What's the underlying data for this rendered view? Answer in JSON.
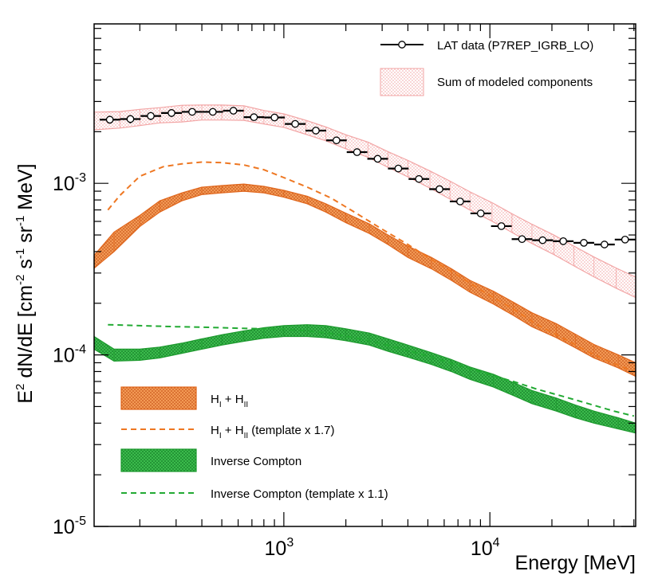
{
  "chart_data": {
    "type": "line",
    "xlabel": "Energy [MeV]",
    "ylabel": {
      "parts": [
        "E",
        "2",
        " dN/dE [cm",
        "-2",
        " s",
        "-1",
        " sr",
        "-1",
        " MeV]"
      ]
    },
    "xscale": "log",
    "yscale": "log",
    "xlim": [
      120,
      51000
    ],
    "ylim": [
      1e-05,
      0.0085
    ],
    "x_ticks": [
      {
        "value": 1000,
        "base": "10",
        "exp": "3"
      },
      {
        "value": 10000,
        "base": "10",
        "exp": "4"
      }
    ],
    "y_ticks": [
      {
        "value": 1e-05,
        "base": "10",
        "exp": "-5"
      },
      {
        "value": 0.0001,
        "base": "10",
        "exp": "-4"
      },
      {
        "value": 0.001,
        "base": "10",
        "exp": "-3"
      }
    ],
    "colors": {
      "data": "#000000",
      "sum_band": "#f4a0a0",
      "hi": "#ee7722",
      "ic": "#22aa33"
    },
    "legend_top": [
      {
        "key": "lat",
        "label": "LAT data (P7REP_IGRB_LO)"
      },
      {
        "key": "sum",
        "label": "Sum of modeled components"
      }
    ],
    "legend_bottom": [
      {
        "key": "hi_band",
        "label_parts": [
          "H",
          "I",
          " + H",
          "II"
        ]
      },
      {
        "key": "hi_dash",
        "label_parts": [
          "H",
          "I",
          " + H",
          "II",
          " (template x 1.7)"
        ]
      },
      {
        "key": "ic_band",
        "label_parts": [
          "Inverse Compton"
        ]
      },
      {
        "key": "ic_dash",
        "label_parts": [
          "Inverse Compton  (template x 1.1)"
        ]
      }
    ],
    "lat_data": {
      "name": "LAT data (P7REP_IGRB_LO)",
      "x": [
        143,
        180,
        226,
        285,
        359,
        452,
        569,
        716,
        901,
        1135,
        1430,
        1800,
        2266,
        2853,
        3593,
        4524,
        5695,
        7171,
        9028,
        11370,
        14320,
        18030,
        22700,
        28580,
        35980,
        45300
      ],
      "y": [
        0.00235,
        0.00237,
        0.00247,
        0.00257,
        0.00261,
        0.00261,
        0.00265,
        0.00243,
        0.00242,
        0.00222,
        0.00203,
        0.00178,
        0.00152,
        0.00139,
        0.00122,
        0.00106,
        0.000925,
        0.000784,
        0.000668,
        0.000563,
        0.000473,
        0.000466,
        0.00046,
        0.00045,
        0.00044,
        0.00047
      ],
      "yerr": [
        0.00012,
        0.00013,
        0.00013,
        0.00013,
        0.00012,
        9e-05,
        7e-05,
        6e-05,
        6e-05,
        5e-05,
        5e-05,
        5e-05,
        4e-05,
        4e-05,
        4e-05,
        3e-05,
        3e-05,
        3e-05,
        2e-05,
        2e-05,
        2e-05,
        2e-05,
        2e-05,
        2e-05,
        2e-05,
        2e-05
      ]
    },
    "sum_band": {
      "name": "Sum of modeled components",
      "x": [
        120,
        160,
        200,
        250,
        320,
        400,
        500,
        640,
        800,
        1000,
        1280,
        1600,
        2000,
        2560,
        3200,
        4000,
        5120,
        6400,
        8000,
        10240,
        12800,
        16000,
        20480,
        25600,
        32000,
        40960,
        51000
      ],
      "low": [
        0.00205,
        0.0021,
        0.00217,
        0.00225,
        0.00228,
        0.00234,
        0.00234,
        0.00233,
        0.00222,
        0.00212,
        0.00193,
        0.00177,
        0.00159,
        0.00142,
        0.00124,
        0.00109,
        0.000938,
        0.00081,
        0.000699,
        0.000602,
        0.000517,
        0.000446,
        0.000384,
        0.00033,
        0.000285,
        0.000245,
        0.000216
      ],
      "high": [
        0.0026,
        0.00262,
        0.0027,
        0.00276,
        0.00285,
        0.00286,
        0.00286,
        0.00283,
        0.00266,
        0.00254,
        0.00233,
        0.00213,
        0.00192,
        0.00174,
        0.00153,
        0.00136,
        0.00118,
        0.00103,
        0.000892,
        0.000771,
        0.000665,
        0.000577,
        0.000499,
        0.00043,
        0.000372,
        0.000321,
        0.000284
      ]
    },
    "hi_band": {
      "name": "H_I + H_II",
      "x": [
        120,
        150,
        200,
        250,
        320,
        400,
        500,
        640,
        800,
        1000,
        1300,
        1600,
        2000,
        2600,
        3200,
        4000,
        5200,
        6500,
        8000,
        10400,
        13000,
        16000,
        21000,
        26000,
        32000,
        42000,
        51000
      ],
      "low": [
        0.00032,
        0.0004,
        0.00056,
        0.00068,
        0.00079,
        0.00086,
        0.00088,
        0.0009,
        0.00088,
        0.00083,
        0.00076,
        0.00068,
        0.00059,
        0.00051,
        0.00044,
        0.00037,
        0.000318,
        0.000272,
        0.000232,
        0.000198,
        0.00017,
        0.000146,
        0.000126,
        0.00011,
        9.6e-05,
        8.4e-05,
        7.5e-05
      ],
      "high": [
        0.00038,
        0.00052,
        0.00065,
        0.00079,
        0.00088,
        0.00095,
        0.00097,
        0.00099,
        0.00096,
        0.00091,
        0.00084,
        0.00076,
        0.00067,
        0.00058,
        0.0005,
        0.00043,
        0.00037,
        0.000318,
        0.000272,
        0.000235,
        0.000203,
        0.000176,
        0.000152,
        0.000132,
        0.000115,
        0.0001,
        9e-05
      ]
    },
    "hi_template": {
      "name": "H_I + H_II (template x 1.7)",
      "x": [
        140,
        160,
        200,
        260,
        320,
        400,
        500,
        640,
        800,
        1000,
        1300,
        1700,
        2200,
        3000,
        4000,
        5200,
        7000,
        9500,
        13000,
        17000,
        23000,
        30000,
        40000,
        50000
      ],
      "y": [
        0.0007,
        0.00085,
        0.0011,
        0.00125,
        0.0013,
        0.00133,
        0.00132,
        0.00128,
        0.0012,
        0.00108,
        0.00095,
        0.00082,
        0.00068,
        0.00054,
        0.00044,
        0.00036,
        0.00029,
        0.00023,
        0.000185,
        0.00015,
        0.000124,
        0.000104,
        8.9e-05,
        8e-05
      ]
    },
    "ic_band": {
      "name": "Inverse Compton",
      "x": [
        120,
        150,
        200,
        250,
        320,
        400,
        500,
        640,
        800,
        1000,
        1300,
        1600,
        2000,
        2600,
        3200,
        4000,
        5200,
        6500,
        8000,
        10400,
        13000,
        16000,
        21000,
        26000,
        32000,
        42000,
        51000
      ],
      "low": [
        0.000108,
        9.2e-05,
        9.3e-05,
        9.6e-05,
        0.000102,
        0.000108,
        0.000114,
        0.00012,
        0.000125,
        0.000128,
        0.000128,
        0.000126,
        0.000121,
        0.000114,
        0.000105,
        9.7e-05,
        8.8e-05,
        8e-05,
        7.2e-05,
        6.5e-05,
        5.8e-05,
        5.2e-05,
        4.7e-05,
        4.3e-05,
        4e-05,
        3.7e-05,
        3.5e-05
      ],
      "high": [
        0.000128,
        0.000108,
        0.000108,
        0.000111,
        0.000117,
        0.000124,
        0.000131,
        0.000138,
        0.000144,
        0.000148,
        0.00015,
        0.000148,
        0.000142,
        0.000134,
        0.000124,
        0.000114,
        0.000103,
        9.4e-05,
        8.5e-05,
        7.7e-05,
        6.9e-05,
        6.2e-05,
        5.6e-05,
        5.1e-05,
        4.7e-05,
        4.3e-05,
        4e-05
      ]
    },
    "ic_template": {
      "name": "Inverse Compton (template x 1.1)",
      "x": [
        140,
        200,
        300,
        400,
        600,
        800,
        1000,
        1300,
        1700,
        2200,
        3000,
        4000,
        5200,
        7000,
        9500,
        13000,
        17000,
        23000,
        30000,
        40000,
        50000
      ],
      "y": [
        0.00015,
        0.000148,
        0.000146,
        0.000145,
        0.000143,
        0.000142,
        0.000141,
        0.000138,
        0.000133,
        0.000126,
        0.000116,
        0.000106,
        9.7e-05,
        8.7e-05,
        7.8e-05,
        7e-05,
        6.3e-05,
        5.7e-05,
        5.2e-05,
        4.7e-05,
        4.4e-05
      ]
    }
  }
}
